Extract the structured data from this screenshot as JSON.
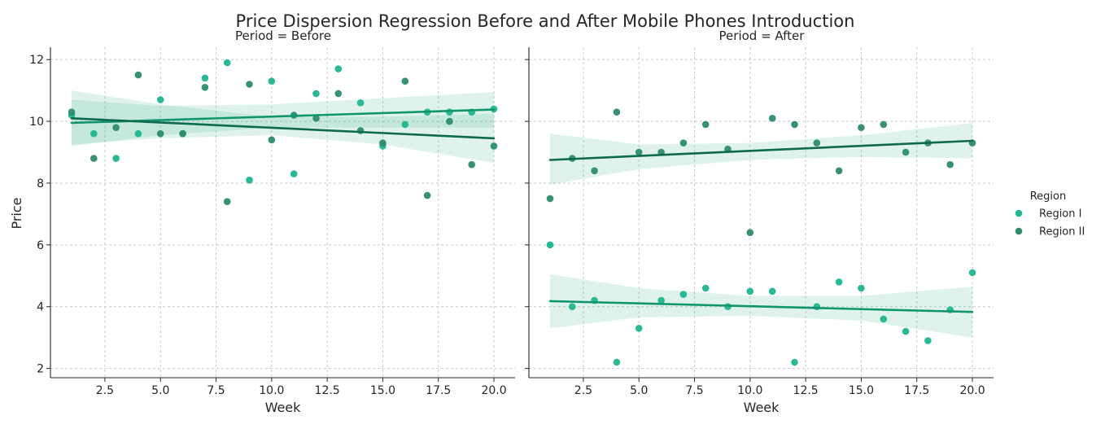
{
  "chart_data": {
    "type": "scatter",
    "title": "Price Dispersion Regression Before and After Mobile Phones Introduction",
    "xlabel": "Week",
    "ylabel": "Price",
    "xlim": [
      0.05,
      20.95
    ],
    "ylim": [
      1.7,
      12.4
    ],
    "x_ticks": [
      2.5,
      5.0,
      7.5,
      10.0,
      12.5,
      15.0,
      17.5,
      20.0
    ],
    "x_tick_labels": [
      "2.5",
      "5.0",
      "7.5",
      "10.0",
      "12.5",
      "15.0",
      "17.5",
      "20.0"
    ],
    "y_ticks": [
      2,
      4,
      6,
      8,
      10,
      12
    ],
    "y_tick_labels": [
      "2",
      "4",
      "6",
      "8",
      "10",
      "12"
    ],
    "grid": true,
    "legend": {
      "title": "Region",
      "placement": "right",
      "entries": [
        {
          "label": "Region I",
          "color": "#1fb58f"
        },
        {
          "label": "Region II",
          "color": "#2e8b6e"
        }
      ]
    },
    "colors": {
      "region_i_points": "#1fb58f",
      "region_ii_points": "#2e8b6e",
      "region_i_line": "#10956e",
      "region_ii_line": "#0d6a4e",
      "ci_band": "#3fb58f"
    },
    "panels": [
      {
        "title": "Period = Before",
        "series": [
          {
            "name": "Region I",
            "x": [
              1,
              2,
              3,
              4,
              5,
              6,
              7,
              8,
              9,
              10,
              11,
              12,
              13,
              14,
              15,
              16,
              17,
              18,
              19,
              20
            ],
            "y": [
              10.2,
              9.6,
              8.8,
              9.6,
              10.7,
              9.6,
              11.4,
              11.9,
              8.1,
              11.3,
              8.3,
              10.9,
              11.7,
              10.6,
              9.2,
              9.9,
              10.3,
              10.3,
              10.3,
              10.4
            ],
            "regression": {
              "x": [
                1,
                20
              ],
              "y": [
                9.95,
                10.38
              ]
            },
            "ci": {
              "x": [
                1,
                5,
                10,
                15,
                20
              ],
              "lower": [
                9.2,
                9.55,
                9.8,
                9.8,
                9.8
              ],
              "upper": [
                10.7,
                10.5,
                10.55,
                10.75,
                10.95
              ]
            }
          },
          {
            "name": "Region II",
            "x": [
              1,
              2,
              3,
              4,
              5,
              6,
              7,
              8,
              9,
              10,
              11,
              12,
              13,
              14,
              15,
              16,
              17,
              18,
              19,
              20
            ],
            "y": [
              10.3,
              8.8,
              9.8,
              11.5,
              9.6,
              9.6,
              11.1,
              7.4,
              11.2,
              9.4,
              10.2,
              10.1,
              10.9,
              9.7,
              9.3,
              11.3,
              7.6,
              10.0,
              8.6,
              9.2
            ],
            "regression": {
              "x": [
                1,
                20
              ],
              "y": [
                10.1,
                9.45
              ]
            },
            "ci": {
              "x": [
                1,
                5,
                10,
                15,
                20
              ],
              "lower": [
                9.25,
                9.45,
                9.55,
                9.25,
                8.65
              ],
              "upper": [
                11.0,
                10.55,
                10.15,
                10.15,
                10.25
              ]
            }
          }
        ]
      },
      {
        "title": "Period = After",
        "series": [
          {
            "name": "Region I",
            "x": [
              1,
              2,
              3,
              4,
              5,
              6,
              7,
              8,
              9,
              10,
              11,
              12,
              13,
              14,
              15,
              16,
              17,
              18,
              19,
              20
            ],
            "y": [
              6.0,
              4.0,
              4.2,
              2.2,
              3.3,
              4.2,
              4.4,
              4.6,
              4.0,
              4.5,
              4.5,
              2.2,
              4.0,
              4.8,
              4.6,
              3.6,
              3.2,
              2.9,
              3.9,
              5.1
            ],
            "regression": {
              "x": [
                1,
                20
              ],
              "y": [
                4.18,
                3.83
              ]
            },
            "ci": {
              "x": [
                1,
                5,
                10,
                15,
                20
              ],
              "lower": [
                3.3,
                3.65,
                3.7,
                3.55,
                3.0
              ],
              "upper": [
                5.05,
                4.6,
                4.35,
                4.35,
                4.65
              ]
            }
          },
          {
            "name": "Region II",
            "x": [
              1,
              2,
              3,
              4,
              5,
              6,
              7,
              8,
              9,
              10,
              11,
              12,
              13,
              14,
              15,
              16,
              17,
              18,
              19,
              20
            ],
            "y": [
              7.5,
              8.8,
              8.4,
              10.3,
              9.0,
              9.0,
              9.3,
              9.9,
              9.1,
              6.4,
              10.1,
              9.9,
              9.3,
              8.4,
              9.8,
              9.9,
              9.0,
              9.3,
              8.6,
              9.3
            ],
            "regression": {
              "x": [
                1,
                20
              ],
              "y": [
                8.75,
                9.37
              ]
            },
            "ci": {
              "x": [
                1,
                5,
                10,
                15,
                20
              ],
              "lower": [
                7.95,
                8.45,
                8.75,
                8.85,
                8.8
              ],
              "upper": [
                9.6,
                9.25,
                9.3,
                9.55,
                9.95
              ]
            }
          }
        ]
      }
    ]
  }
}
